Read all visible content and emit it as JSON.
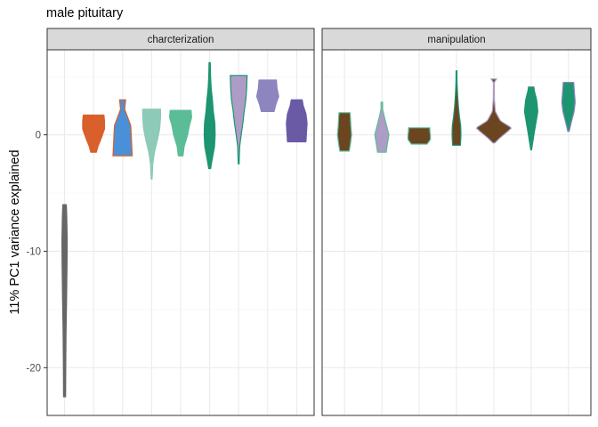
{
  "chart_data": {
    "type": "violin",
    "title": "male pituitary",
    "xlabel": "",
    "ylabel": "11% PC1 variance explained",
    "ylim": [
      -24.1,
      7.3
    ],
    "yticks": [
      -20,
      -10,
      0
    ],
    "yticklabels": [
      "-20",
      "-10",
      "0"
    ],
    "grid": true,
    "legend": "none",
    "panels": [
      {
        "strip": "charcterization",
        "violins": [
          {
            "fill": "#666666",
            "outline": "#666666",
            "min": -22.5,
            "max": -6.0,
            "width": 0.2,
            "profile": [
              [
                -22.5,
                0.35
              ],
              [
                -20,
                0.4
              ],
              [
                -17,
                0.5
              ],
              [
                -14,
                0.7
              ],
              [
                -11,
                0.85
              ],
              [
                -9,
                0.9
              ],
              [
                -7,
                0.75
              ],
              [
                -6,
                0.6
              ]
            ]
          },
          {
            "fill": "#d95f2b",
            "outline": "#d95f2b",
            "min": -1.5,
            "max": 1.7,
            "width": 0.75,
            "profile": [
              [
                -1.5,
                0.25
              ],
              [
                -1,
                0.4
              ],
              [
                -0.3,
                0.7
              ],
              [
                0.5,
                1
              ],
              [
                1.2,
                1
              ],
              [
                1.7,
                0.95
              ]
            ]
          },
          {
            "fill": "#4a90d9",
            "outline": "#d95f2b",
            "min": -1.8,
            "max": 3.0,
            "width": 0.7,
            "profile": [
              [
                -1.8,
                0.95
              ],
              [
                -1,
                0.9
              ],
              [
                0,
                0.85
              ],
              [
                0.8,
                0.8
              ],
              [
                1.5,
                0.5
              ],
              [
                2.2,
                0.2
              ],
              [
                3.0,
                0.3
              ]
            ]
          },
          {
            "fill": "#8ecab8",
            "outline": "#8ecab8",
            "min": -3.8,
            "max": 2.2,
            "width": 0.65,
            "profile": [
              [
                -3.8,
                0.05
              ],
              [
                -2.5,
                0.12
              ],
              [
                -1.5,
                0.3
              ],
              [
                -0.5,
                0.6
              ],
              [
                0.5,
                0.85
              ],
              [
                1.5,
                0.95
              ],
              [
                2.2,
                0.95
              ]
            ]
          },
          {
            "fill": "#5abd97",
            "outline": "#5abd97",
            "min": -1.8,
            "max": 2.1,
            "width": 0.8,
            "profile": [
              [
                -1.8,
                0.2
              ],
              [
                -1,
                0.3
              ],
              [
                0,
                0.6
              ],
              [
                0.8,
                0.75
              ],
              [
                1.5,
                0.95
              ],
              [
                2.1,
                0.9
              ]
            ]
          },
          {
            "fill": "#1d9570",
            "outline": "#1d9570",
            "min": -2.9,
            "max": 6.2,
            "width": 0.42,
            "profile": [
              [
                -2.9,
                0.15
              ],
              [
                -2,
                0.45
              ],
              [
                -1,
                0.8
              ],
              [
                0,
                0.9
              ],
              [
                1,
                0.85
              ],
              [
                2,
                0.6
              ],
              [
                3,
                0.45
              ],
              [
                4,
                0.25
              ],
              [
                5,
                0.15
              ],
              [
                6.2,
                0.1
              ]
            ]
          },
          {
            "fill": "#ad9cc6",
            "outline": "#1d9570",
            "min": -2.5,
            "max": 5.1,
            "width": 0.58,
            "profile": [
              [
                -2.5,
                0.05
              ],
              [
                -1,
                0.12
              ],
              [
                0,
                0.3
              ],
              [
                1,
                0.5
              ],
              [
                2,
                0.65
              ],
              [
                3,
                0.85
              ],
              [
                4,
                0.95
              ],
              [
                5.1,
                1
              ]
            ]
          },
          {
            "fill": "#8c85bf",
            "outline": "#8c85bf",
            "min": 2.0,
            "max": 4.7,
            "width": 0.8,
            "profile": [
              [
                2.0,
                0.55
              ],
              [
                2.6,
                0.7
              ],
              [
                3.3,
                0.95
              ],
              [
                4.0,
                0.8
              ],
              [
                4.7,
                0.75
              ]
            ]
          },
          {
            "fill": "#6a5aa6",
            "outline": "#6a5aa6",
            "min": -0.6,
            "max": 3.0,
            "width": 0.75,
            "profile": [
              [
                -0.6,
                0.85
              ],
              [
                0.2,
                0.9
              ],
              [
                1,
                0.95
              ],
              [
                1.8,
                0.85
              ],
              [
                2.5,
                0.6
              ],
              [
                3.0,
                0.5
              ]
            ]
          }
        ]
      },
      {
        "strip": "manipulation",
        "violins": [
          {
            "fill": "#6b4520",
            "outline": "#5abd97",
            "min": -1.4,
            "max": 1.9,
            "width": 0.42,
            "profile": [
              [
                -1.4,
                0.6
              ],
              [
                -0.8,
                0.75
              ],
              [
                0,
                0.9
              ],
              [
                0.8,
                0.8
              ],
              [
                1.5,
                0.75
              ],
              [
                1.9,
                0.7
              ]
            ]
          },
          {
            "fill": "#ad9cc6",
            "outline": "#5abd97",
            "min": -1.5,
            "max": 2.8,
            "width": 0.42,
            "profile": [
              [
                -1.5,
                0.55
              ],
              [
                -0.8,
                0.7
              ],
              [
                0,
                0.9
              ],
              [
                0.8,
                0.6
              ],
              [
                1.6,
                0.3
              ],
              [
                2.2,
                0.1
              ],
              [
                2.8,
                0.1
              ]
            ]
          },
          {
            "fill": "#6b4520",
            "outline": "#5abd97",
            "min": -0.8,
            "max": 0.6,
            "width": 0.6,
            "profile": [
              [
                -0.8,
                0.7
              ],
              [
                -0.4,
                1
              ],
              [
                0,
                1
              ],
              [
                0.3,
                0.95
              ],
              [
                0.6,
                0.95
              ]
            ]
          },
          {
            "fill": "#6b4520",
            "outline": "#1d9570",
            "min": -0.9,
            "max": 5.5,
            "width": 0.28,
            "profile": [
              [
                -0.9,
                0.75
              ],
              [
                0,
                0.85
              ],
              [
                0.8,
                0.8
              ],
              [
                1.6,
                0.55
              ],
              [
                2.5,
                0.35
              ],
              [
                3.5,
                0.2
              ],
              [
                4.5,
                0.1
              ],
              [
                5.5,
                0.08
              ]
            ]
          },
          {
            "fill": "#6b4520",
            "outline": "#ad9cc6",
            "min": -0.7,
            "max": 4.8,
            "width": 1.0,
            "profile": [
              [
                -0.7,
                0.05
              ],
              [
                -0.3,
                0.3
              ],
              [
                0.3,
                0.75
              ],
              [
                0.6,
                0.95
              ],
              [
                1.2,
                0.35
              ],
              [
                2,
                0.08
              ],
              [
                3,
                0.03
              ],
              [
                4.5,
                0.02
              ],
              [
                4.8,
                0.15
              ]
            ]
          },
          {
            "fill": "#1d9570",
            "outline": "#1d9570",
            "min": -1.3,
            "max": 4.1,
            "width": 0.42,
            "profile": [
              [
                -1.3,
                0.05
              ],
              [
                0,
                0.35
              ],
              [
                1,
                0.6
              ],
              [
                2,
                0.85
              ],
              [
                3,
                0.7
              ],
              [
                3.8,
                0.4
              ],
              [
                4.1,
                0.35
              ]
            ]
          },
          {
            "fill": "#1d9570",
            "outline": "#8c85bf",
            "min": 0.3,
            "max": 4.5,
            "width": 0.4,
            "profile": [
              [
                0.3,
                0.1
              ],
              [
                1,
                0.35
              ],
              [
                2,
                0.75
              ],
              [
                2.8,
                0.9
              ],
              [
                3.6,
                0.8
              ],
              [
                4.5,
                0.7
              ]
            ]
          }
        ]
      }
    ]
  }
}
